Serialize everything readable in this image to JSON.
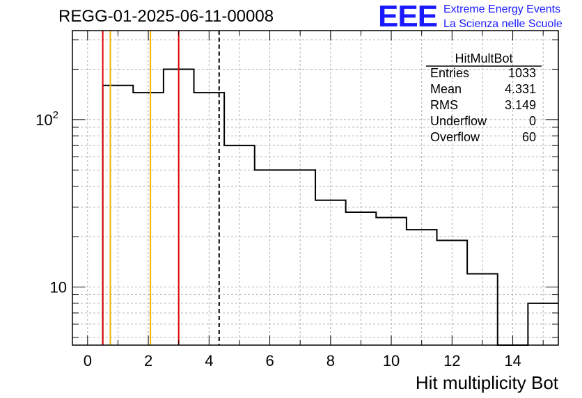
{
  "header": {
    "title": "REGG-01-2025-06-11-00008",
    "logo_text": "EEE",
    "logo_line1": "Extreme Energy Events",
    "logo_line2": "La Scienza nelle Scuole"
  },
  "colors": {
    "hist": "#000000",
    "red_line": "#e00000",
    "orange_line": "#f0b400",
    "logo": "#1a1aff"
  },
  "stats": {
    "title": "HitMultBot",
    "rows": [
      {
        "label": "Entries",
        "value": "1033"
      },
      {
        "label": "Mean",
        "value": "4.331"
      },
      {
        "label": "RMS",
        "value": "3.149"
      },
      {
        "label": "Underflow",
        "value": "0"
      },
      {
        "label": "Overflow",
        "value": "60"
      }
    ]
  },
  "chart_data": {
    "type": "histogram",
    "title": "REGG-01-2025-06-11-00008",
    "xlabel": "Hit multiplicity Bot",
    "ylabel": "",
    "log_y": true,
    "xlim": [
      -0.5,
      15.5
    ],
    "ylim": [
      4.5,
      340
    ],
    "grid": true,
    "x_ticks": [
      "0",
      "2",
      "4",
      "6",
      "8",
      "10",
      "12",
      "14"
    ],
    "y_ticks": [
      {
        "value": 10,
        "label": "10"
      },
      {
        "value": 100,
        "label": "10",
        "sup": "2"
      }
    ],
    "bin_edges": [
      0.5,
      1.5,
      2.5,
      3.5,
      4.5,
      5.5,
      7.5,
      8.5,
      9.5,
      10.5,
      11.5,
      12.5,
      13.5,
      14.5,
      15.5
    ],
    "values": [
      160,
      145,
      200,
      145,
      70,
      50,
      33,
      28,
      26,
      22,
      19,
      12,
      4,
      8
    ],
    "vertical_lines": [
      {
        "x": 0.5,
        "color": "red",
        "style": "solid"
      },
      {
        "x": 0.75,
        "color": "orange",
        "style": "solid"
      },
      {
        "x": 2.07,
        "color": "orange",
        "style": "solid"
      },
      {
        "x": 3.0,
        "color": "red",
        "style": "solid"
      },
      {
        "x": 4.331,
        "color": "black",
        "style": "dashed"
      }
    ]
  }
}
